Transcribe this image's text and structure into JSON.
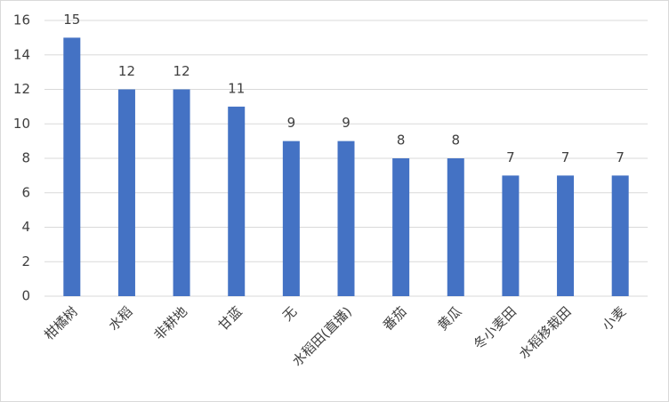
{
  "chart_data": {
    "type": "bar",
    "categories": [
      "柑橘树",
      "水稻",
      "非耕地",
      "甘蓝",
      "无",
      "水稻田(直播)",
      "番茄",
      "黄瓜",
      "冬小麦田",
      "水稻移栽田",
      "小麦"
    ],
    "values": [
      15,
      12,
      12,
      11,
      9,
      9,
      8,
      8,
      7,
      7,
      7
    ],
    "color": "#4472c4",
    "ylim": [
      0,
      16
    ],
    "yticks": [
      0,
      2,
      4,
      6,
      8,
      10,
      12,
      14,
      16
    ],
    "grid": true,
    "data_labels": true
  }
}
